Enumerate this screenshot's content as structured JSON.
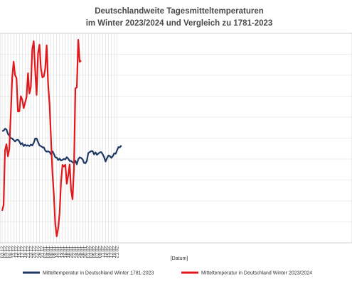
{
  "chart_data": {
    "type": "line",
    "title_lines": [
      "Deutschlandweite Tagesmitteltemperaturen",
      "im Winter 2023/2024 und Vergleich zu 1781-2023"
    ],
    "xlabel": "[Datum]",
    "ylabel": "",
    "y_scale_note": "y-axis tick labels not visible; values in relative units 0-10",
    "ylim": [
      0,
      10
    ],
    "grid": true,
    "legend_position": "bottom",
    "x_tick_labels": [
      "03.12.",
      "05.12.",
      "07.12.",
      "09.12.",
      "11.12.",
      "13.12.",
      "15.12.",
      "17.12.",
      "19.12.",
      "21.12.",
      "23.12.",
      "25.12.",
      "27.12.",
      "29.12.",
      "31.12.",
      "02.01.",
      "04.01.",
      "06.01.",
      "08.01.",
      "10.01.",
      "12.01.",
      "14.01.",
      "16.01.",
      "18.01.",
      "20.01.",
      "22.01.",
      "24.01.",
      "26.01.",
      "28.01.",
      "30.01.",
      "01.02.",
      "03.02.",
      "05.02.",
      "07.02.",
      "09.02.",
      "11.02.",
      "13.02.",
      "15.02.",
      "17.02.",
      "19.02.",
      "21.02."
    ],
    "series": [
      {
        "name": "Mitteltemperatur in Deutschland Winter 1781-2023",
        "color": "#1f3864",
        "values": [
          5.34,
          5.35,
          5.45,
          5.41,
          5.21,
          5.12,
          5.0,
          4.98,
          4.91,
          4.84,
          4.91,
          4.92,
          4.84,
          4.7,
          4.76,
          4.62,
          4.69,
          4.63,
          4.66,
          4.62,
          4.69,
          4.65,
          4.77,
          4.98,
          4.98,
          4.81,
          4.65,
          4.62,
          4.56,
          4.56,
          4.41,
          4.35,
          4.37,
          4.34,
          4.22,
          4.37,
          4.25,
          4.08,
          4.07,
          3.95,
          4.02,
          3.93,
          3.96,
          4.01,
          3.98,
          4.09,
          4.02,
          3.91,
          3.91,
          3.85,
          3.79,
          3.92,
          3.75,
          3.99,
          4.08,
          4.05,
          3.99,
          3.82,
          3.8,
          3.92,
          4.29,
          4.33,
          4.38,
          4.38,
          4.22,
          4.32,
          4.2,
          4.26,
          4.32,
          4.33,
          4.23,
          4.09,
          3.88,
          4.04,
          4.17,
          4.14,
          4.06,
          4.13,
          4.27,
          4.25,
          4.42,
          4.57,
          4.56,
          4.65
        ]
      },
      {
        "name": "Mitteltemperatur in Deutschland Winter 2023/2024",
        "color": "#e3171b",
        "values": [
          1.53,
          1.8,
          4.41,
          4.71,
          4.13,
          4.48,
          6.13,
          7.88,
          8.65,
          8.01,
          7.87,
          6.27,
          6.28,
          7.0,
          6.84,
          6.43,
          6.69,
          6.96,
          8.1,
          7.13,
          7.44,
          9.26,
          9.63,
          8.23,
          7.06,
          9.05,
          9.46,
          8.33,
          7.9,
          7.94,
          8.31,
          9.43,
          7.6,
          6.62,
          5.0,
          3.38,
          2.29,
          0.89,
          0.31,
          0.68,
          1.42,
          2.89,
          3.72,
          3.64,
          3.73,
          2.82,
          3.21,
          3.74,
          2.52,
          2.08,
          3.54,
          7.38,
          7.42,
          9.69,
          8.64,
          8.7
        ]
      }
    ]
  }
}
